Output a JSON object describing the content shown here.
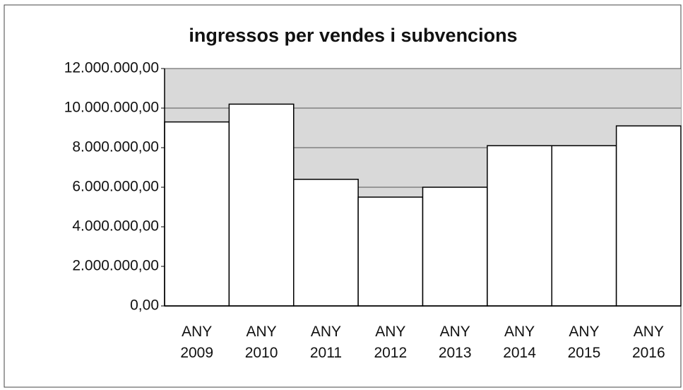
{
  "chart_data": {
    "type": "bar",
    "title": "ingressos per vendes i subvencions",
    "categories": [
      "ANY 2009",
      "ANY 2010",
      "ANY 2011",
      "ANY 2012",
      "ANY 2013",
      "ANY 2014",
      "ANY 2015",
      "ANY 2016"
    ],
    "values": [
      9300000,
      10200000,
      6400000,
      5500000,
      6000000,
      8100000,
      8100000,
      9100000
    ],
    "color": "#ffffff",
    "ylim": [
      0,
      12000000
    ],
    "yticks": [
      {
        "value": 0,
        "label": "0,00"
      },
      {
        "value": 2000000,
        "label": "2.000.000,00"
      },
      {
        "value": 4000000,
        "label": "4.000.000,00"
      },
      {
        "value": 6000000,
        "label": "6.000.000,00"
      },
      {
        "value": 8000000,
        "label": "8.000.000,00"
      },
      {
        "value": 10000000,
        "label": "10.000.000,00"
      },
      {
        "value": 12000000,
        "label": "12.000.000,00"
      }
    ],
    "grid": true
  }
}
